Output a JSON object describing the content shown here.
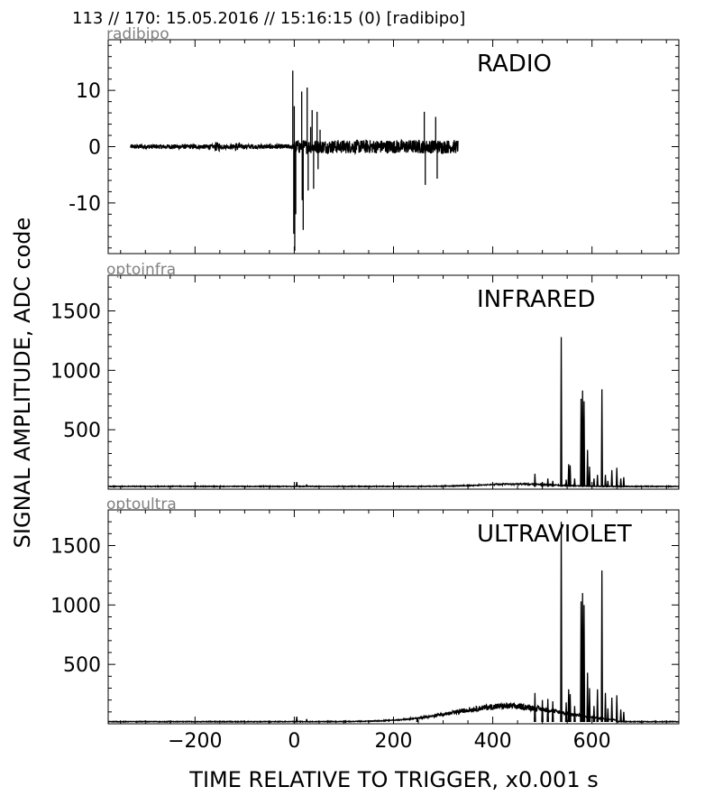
{
  "header": "113 // 170:   15.05.2016 // 15:16:15 (0)  [radibipo]",
  "ylabel": "SIGNAL AMPLITUDE,  ADC code",
  "xlabel": "TIME RELATIVE TO TRIGGER,   x0.001 s",
  "colors": {
    "trace": "#000000",
    "frame": "#000000",
    "channel_tag": "#808080"
  },
  "chart_data": [
    {
      "type": "line",
      "channel": "radibipo",
      "title": "RADIO",
      "xlim": [
        -375,
        775
      ],
      "ylim": [
        -19,
        19
      ],
      "yticks": [
        10,
        0,
        -10
      ],
      "ytick_labels": [
        "10",
        "0",
        "-10"
      ],
      "xticks": [
        -200,
        0,
        200,
        400,
        600
      ],
      "grid": false,
      "data_extent_x": [
        -330,
        330
      ],
      "noise_amplitude_before_trigger": 0.4,
      "noise_amplitude_after_trigger": 1.2,
      "spikes": [
        {
          "x": -3,
          "y": 13.5
        },
        {
          "x": -1,
          "y": -15.5
        },
        {
          "x": 0,
          "y": 7.2
        },
        {
          "x": 1,
          "y": -18.5
        },
        {
          "x": 3,
          "y": -12
        },
        {
          "x": 15,
          "y": 9.8
        },
        {
          "x": 16,
          "y": -9.5
        },
        {
          "x": 18,
          "y": -14.8
        },
        {
          "x": 26,
          "y": 10.5
        },
        {
          "x": 28,
          "y": -7.8
        },
        {
          "x": 33,
          "y": 3.5
        },
        {
          "x": 36,
          "y": 6.5
        },
        {
          "x": 39,
          "y": -7.5
        },
        {
          "x": 46,
          "y": 6.2
        },
        {
          "x": 48,
          "y": -4
        },
        {
          "x": 52,
          "y": 3
        },
        {
          "x": 262,
          "y": 6.2
        },
        {
          "x": 264,
          "y": -6.8
        },
        {
          "x": 285,
          "y": 5.3
        },
        {
          "x": 288,
          "y": -5.7
        }
      ]
    },
    {
      "type": "line",
      "channel": "optoinfra",
      "title": "INFRARED",
      "xlim": [
        -375,
        775
      ],
      "ylim": [
        0,
        1800
      ],
      "yticks": [
        500,
        1000,
        1500
      ],
      "ytick_labels": [
        "500",
        "1000",
        "1500"
      ],
      "xticks": [
        -200,
        0,
        200,
        400,
        600
      ],
      "grid": false,
      "baseline": 20,
      "background_hump": {
        "center": 450,
        "width": 100,
        "height": 20
      },
      "peaks": [
        {
          "x": 5,
          "y": 60
        },
        {
          "x": 25,
          "y": 40
        },
        {
          "x": 485,
          "y": 130
        },
        {
          "x": 500,
          "y": 60
        },
        {
          "x": 511,
          "y": 90
        },
        {
          "x": 521,
          "y": 70
        },
        {
          "x": 538,
          "y": 1280
        },
        {
          "x": 548,
          "y": 80
        },
        {
          "x": 553,
          "y": 210
        },
        {
          "x": 556,
          "y": 200
        },
        {
          "x": 565,
          "y": 90
        },
        {
          "x": 578,
          "y": 760
        },
        {
          "x": 581,
          "y": 830
        },
        {
          "x": 584,
          "y": 740
        },
        {
          "x": 591,
          "y": 330
        },
        {
          "x": 595,
          "y": 190
        },
        {
          "x": 604,
          "y": 90
        },
        {
          "x": 611,
          "y": 120
        },
        {
          "x": 620,
          "y": 840
        },
        {
          "x": 627,
          "y": 120
        },
        {
          "x": 632,
          "y": 70
        },
        {
          "x": 640,
          "y": 160
        },
        {
          "x": 650,
          "y": 180
        },
        {
          "x": 658,
          "y": 90
        },
        {
          "x": 664,
          "y": 100
        }
      ]
    },
    {
      "type": "line",
      "channel": "optoultra",
      "title": "ULTRAVIOLET",
      "xlim": [
        -375,
        775
      ],
      "ylim": [
        0,
        1800
      ],
      "yticks": [
        500,
        1000,
        1500
      ],
      "ytick_labels": [
        "500",
        "1000",
        "1500"
      ],
      "xticks": [
        -200,
        0,
        200,
        400,
        600
      ],
      "xtick_labels": [
        "−200",
        "0",
        "200",
        "400",
        "600"
      ],
      "grid": false,
      "baseline": 15,
      "background_hump": {
        "center": 430,
        "width": 150,
        "height": 130
      },
      "peaks": [
        {
          "x": 5,
          "y": 60
        },
        {
          "x": 25,
          "y": 40
        },
        {
          "x": 248,
          "y": 50
        },
        {
          "x": 485,
          "y": 260
        },
        {
          "x": 500,
          "y": 200
        },
        {
          "x": 511,
          "y": 210
        },
        {
          "x": 521,
          "y": 190
        },
        {
          "x": 538,
          "y": 1700
        },
        {
          "x": 548,
          "y": 180
        },
        {
          "x": 553,
          "y": 290
        },
        {
          "x": 556,
          "y": 250
        },
        {
          "x": 565,
          "y": 150
        },
        {
          "x": 578,
          "y": 1030
        },
        {
          "x": 581,
          "y": 1100
        },
        {
          "x": 584,
          "y": 1000
        },
        {
          "x": 591,
          "y": 430
        },
        {
          "x": 595,
          "y": 300
        },
        {
          "x": 604,
          "y": 150
        },
        {
          "x": 611,
          "y": 290
        },
        {
          "x": 620,
          "y": 1290
        },
        {
          "x": 627,
          "y": 260
        },
        {
          "x": 632,
          "y": 130
        },
        {
          "x": 640,
          "y": 220
        },
        {
          "x": 650,
          "y": 240
        },
        {
          "x": 658,
          "y": 120
        },
        {
          "x": 664,
          "y": 100
        }
      ]
    }
  ]
}
